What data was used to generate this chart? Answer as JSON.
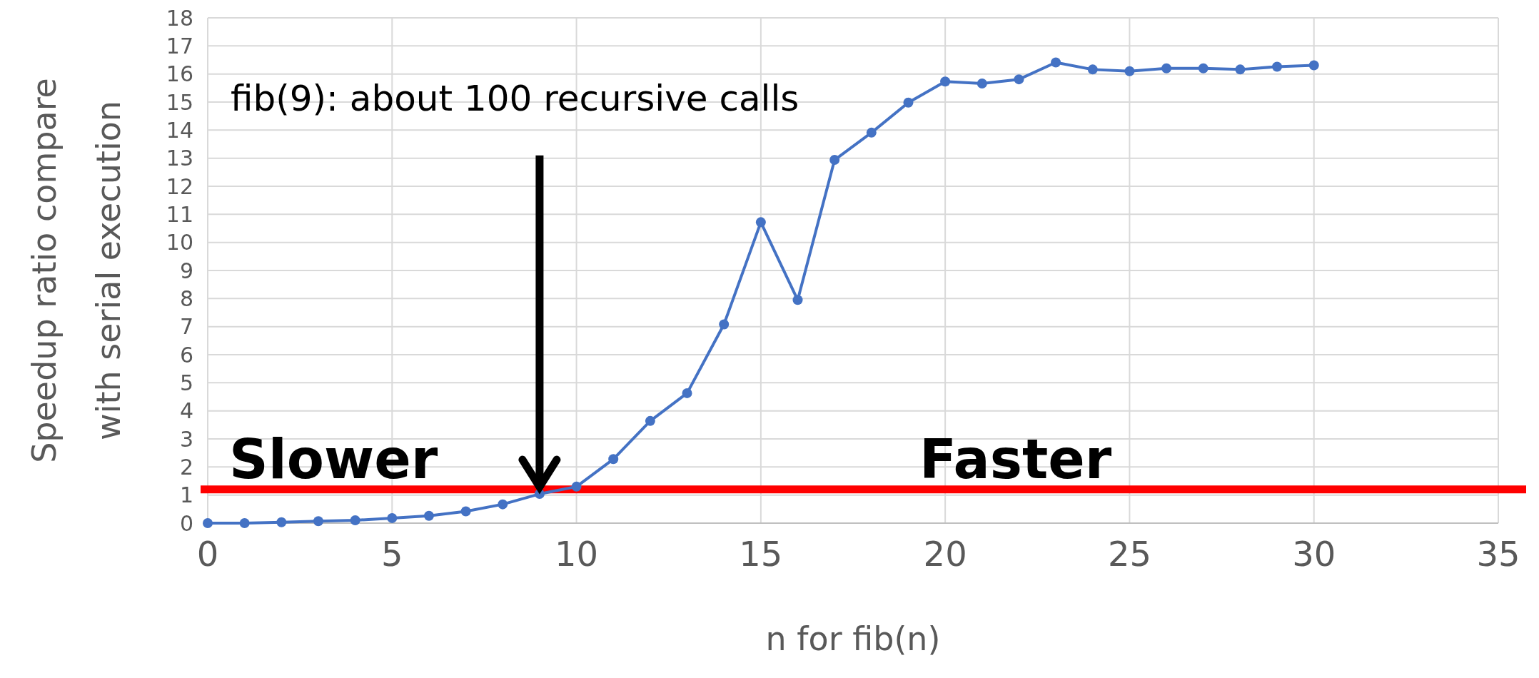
{
  "chart_data": {
    "type": "line",
    "xlabel": "n for fib(n)",
    "ylabel": "Speedup ratio compare\nwith serial execution",
    "x": [
      0,
      1,
      2,
      3,
      4,
      5,
      6,
      7,
      8,
      9,
      10,
      11,
      12,
      13,
      14,
      15,
      16,
      17,
      18,
      19,
      20,
      21,
      22,
      23,
      24,
      25,
      26,
      27,
      28,
      29,
      30
    ],
    "series": [
      {
        "color": "#4472c4",
        "values": [
          0.0,
          0.0,
          0.03,
          0.07,
          0.1,
          0.18,
          0.26,
          0.42,
          0.67,
          1.04,
          1.3,
          2.28,
          3.64,
          4.63,
          7.08,
          10.72,
          7.95,
          12.94,
          13.91,
          14.98,
          15.73,
          15.66,
          15.81,
          16.41,
          16.16,
          16.1,
          16.2,
          16.2,
          16.16,
          16.26,
          16.31
        ]
      }
    ],
    "xlim": [
      0,
      35
    ],
    "xticks": [
      0,
      5,
      10,
      15,
      20,
      25,
      30,
      35
    ],
    "ylim": [
      0,
      18
    ],
    "yticks": [
      0,
      1,
      2,
      3,
      4,
      5,
      6,
      7,
      8,
      9,
      10,
      11,
      12,
      13,
      14,
      15,
      16,
      17,
      18
    ],
    "grid": true,
    "marker": "circle",
    "line_style": "solid",
    "ref_lines": [
      {
        "axis": "y",
        "value": 1.2,
        "color": "#ff0000",
        "line_style": "solid"
      }
    ],
    "annotations": [
      {
        "text": "fib(9): about 100 recursive calls",
        "x": 9,
        "y": 1.04
      },
      "Slower",
      "Faster"
    ]
  }
}
